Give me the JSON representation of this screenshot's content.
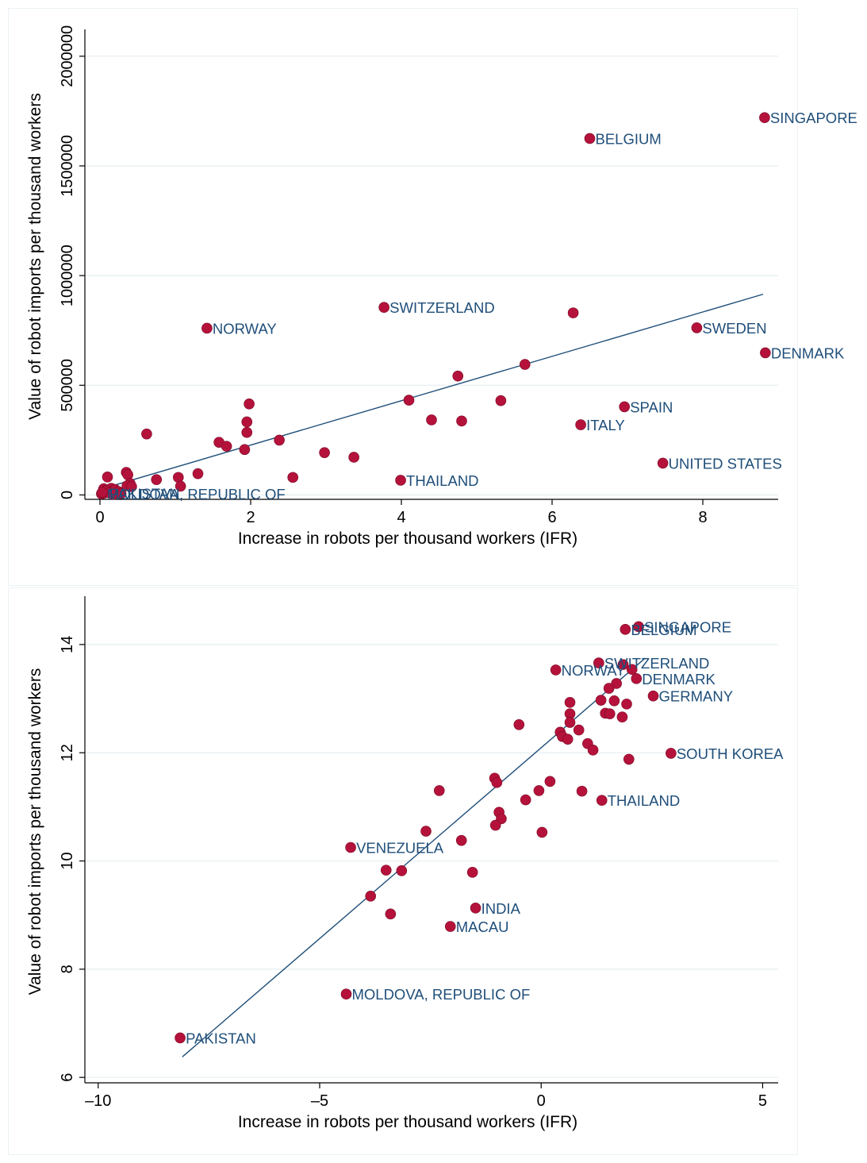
{
  "chart_data": [
    {
      "type": "scatter",
      "title": "",
      "xlabel": "Increase in robots per thousand workers (IFR)",
      "ylabel": "Value of robot imports per thousand workers",
      "xlim": [
        -0.2,
        9.0
      ],
      "ylim": [
        -20000,
        2050000
      ],
      "xticks": [
        0,
        2,
        4,
        6,
        8
      ],
      "yticks": [
        0,
        500000,
        1000000,
        1500000,
        2000000
      ],
      "grid": true,
      "marker_color": "#b5123b",
      "line_color": "#1f4e79",
      "label_color": "#1f4e79",
      "fit_line": {
        "x": [
          0.0,
          8.8
        ],
        "y": [
          25000,
          915000
        ]
      },
      "points": [
        {
          "x": 8.82,
          "y": 1720000,
          "label": "SINGAPORE"
        },
        {
          "x": 6.5,
          "y": 1625000,
          "label": "BELGIUM"
        },
        {
          "x": 3.77,
          "y": 855000,
          "label": "SWITZERLAND"
        },
        {
          "x": 1.42,
          "y": 760000,
          "label": "NORWAY"
        },
        {
          "x": 7.92,
          "y": 762000,
          "label": "SWEDEN"
        },
        {
          "x": 8.83,
          "y": 648000,
          "label": "DENMARK"
        },
        {
          "x": 6.96,
          "y": 402000,
          "label": "SPAIN"
        },
        {
          "x": 6.38,
          "y": 320000,
          "label": "ITALY"
        },
        {
          "x": 7.47,
          "y": 145000,
          "label": "UNITED STATES"
        },
        {
          "x": 3.99,
          "y": 67000,
          "label": "THAILAND"
        },
        {
          "x": 0.02,
          "y": 5000,
          "label": "MOLDOVA, REPUBLIC OF"
        },
        {
          "x": 0.05,
          "y": 8000,
          "label": "PAKISTAN"
        },
        {
          "x": 6.28,
          "y": 830000,
          "label": ""
        },
        {
          "x": 5.64,
          "y": 595000,
          "label": ""
        },
        {
          "x": 4.75,
          "y": 542000,
          "label": ""
        },
        {
          "x": 4.1,
          "y": 432000,
          "label": ""
        },
        {
          "x": 5.32,
          "y": 430000,
          "label": ""
        },
        {
          "x": 4.4,
          "y": 342000,
          "label": ""
        },
        {
          "x": 4.8,
          "y": 337000,
          "label": ""
        },
        {
          "x": 1.98,
          "y": 415000,
          "label": ""
        },
        {
          "x": 1.95,
          "y": 333000,
          "label": ""
        },
        {
          "x": 1.95,
          "y": 285000,
          "label": ""
        },
        {
          "x": 2.38,
          "y": 250000,
          "label": ""
        },
        {
          "x": 1.58,
          "y": 240000,
          "label": ""
        },
        {
          "x": 1.68,
          "y": 222000,
          "label": ""
        },
        {
          "x": 1.92,
          "y": 207000,
          "label": ""
        },
        {
          "x": 0.62,
          "y": 278000,
          "label": ""
        },
        {
          "x": 2.98,
          "y": 193000,
          "label": ""
        },
        {
          "x": 3.37,
          "y": 172000,
          "label": ""
        },
        {
          "x": 1.3,
          "y": 97000,
          "label": ""
        },
        {
          "x": 2.56,
          "y": 80000,
          "label": ""
        },
        {
          "x": 1.04,
          "y": 80000,
          "label": ""
        },
        {
          "x": 0.75,
          "y": 70000,
          "label": ""
        },
        {
          "x": 1.07,
          "y": 40000,
          "label": ""
        },
        {
          "x": 0.35,
          "y": 103000,
          "label": ""
        },
        {
          "x": 0.37,
          "y": 92000,
          "label": ""
        },
        {
          "x": 0.1,
          "y": 82000,
          "label": ""
        },
        {
          "x": 0.4,
          "y": 52000,
          "label": ""
        },
        {
          "x": 0.36,
          "y": 42000,
          "label": ""
        },
        {
          "x": 0.42,
          "y": 38000,
          "label": ""
        },
        {
          "x": 0.15,
          "y": 30000,
          "label": ""
        },
        {
          "x": 0.05,
          "y": 28000,
          "label": ""
        },
        {
          "x": 0.2,
          "y": 25000,
          "label": ""
        },
        {
          "x": 0.08,
          "y": 20000,
          "label": ""
        },
        {
          "x": 0.25,
          "y": 15000,
          "label": ""
        },
        {
          "x": 0.12,
          "y": 10000,
          "label": ""
        },
        {
          "x": 0.03,
          "y": 12000,
          "label": ""
        },
        {
          "x": 0.18,
          "y": 3000,
          "label": ""
        },
        {
          "x": 0.28,
          "y": 6000,
          "label": ""
        }
      ]
    },
    {
      "type": "scatter",
      "title": "",
      "xlabel": "Increase in robots per thousand workers (IFR)",
      "ylabel": "Value of robot imports per thousand workers",
      "xlim": [
        -10.3,
        5.35
      ],
      "ylim": [
        5.9,
        14.6
      ],
      "xticks": [
        -10,
        -5,
        0,
        5
      ],
      "xtick_labels": [
        "–10",
        "–5",
        "0",
        "5"
      ],
      "yticks": [
        6,
        8,
        10,
        12,
        14
      ],
      "grid": true,
      "marker_color": "#b5123b",
      "line_color": "#1f4e79",
      "label_color": "#1f4e79",
      "fit_line": {
        "x": [
          -8.1,
          2.35
        ],
        "y": [
          6.38,
          13.75
        ]
      },
      "points": [
        {
          "x": 2.2,
          "y": 14.33,
          "label": "SINGAPORE"
        },
        {
          "x": 1.9,
          "y": 14.28,
          "label": "BELGIUM"
        },
        {
          "x": 1.3,
          "y": 13.66,
          "label": "SWITZERLAND"
        },
        {
          "x": 0.33,
          "y": 13.53,
          "label": "NORWAY"
        },
        {
          "x": 2.15,
          "y": 13.37,
          "label": "DENMARK"
        },
        {
          "x": 2.53,
          "y": 13.05,
          "label": "GERMANY"
        },
        {
          "x": 2.93,
          "y": 11.99,
          "label": "SOUTH KOREA"
        },
        {
          "x": 1.37,
          "y": 11.12,
          "label": "THAILAND"
        },
        {
          "x": -4.3,
          "y": 10.25,
          "label": "VENEZUELA"
        },
        {
          "x": -1.48,
          "y": 9.13,
          "label": "INDIA"
        },
        {
          "x": -2.05,
          "y": 8.79,
          "label": "MACAU"
        },
        {
          "x": -4.4,
          "y": 7.54,
          "label": "MOLDOVA, REPUBLIC OF"
        },
        {
          "x": -8.15,
          "y": 6.73,
          "label": "PAKISTAN"
        },
        {
          "x": 1.85,
          "y": 13.63,
          "label": ""
        },
        {
          "x": 2.05,
          "y": 13.54,
          "label": ""
        },
        {
          "x": 1.7,
          "y": 13.28,
          "label": ""
        },
        {
          "x": 1.53,
          "y": 13.19,
          "label": ""
        },
        {
          "x": 1.35,
          "y": 12.97,
          "label": ""
        },
        {
          "x": 1.65,
          "y": 12.96,
          "label": ""
        },
        {
          "x": 0.65,
          "y": 12.93,
          "label": ""
        },
        {
          "x": 1.93,
          "y": 12.9,
          "label": ""
        },
        {
          "x": 0.65,
          "y": 12.72,
          "label": ""
        },
        {
          "x": 1.45,
          "y": 12.73,
          "label": ""
        },
        {
          "x": 1.55,
          "y": 12.72,
          "label": ""
        },
        {
          "x": 1.83,
          "y": 12.66,
          "label": ""
        },
        {
          "x": 0.65,
          "y": 12.56,
          "label": ""
        },
        {
          "x": -0.5,
          "y": 12.52,
          "label": ""
        },
        {
          "x": 0.85,
          "y": 12.42,
          "label": ""
        },
        {
          "x": 0.43,
          "y": 12.38,
          "label": ""
        },
        {
          "x": 0.48,
          "y": 12.3,
          "label": ""
        },
        {
          "x": 0.6,
          "y": 12.25,
          "label": ""
        },
        {
          "x": 1.05,
          "y": 12.17,
          "label": ""
        },
        {
          "x": 1.17,
          "y": 12.05,
          "label": ""
        },
        {
          "x": 1.98,
          "y": 11.88,
          "label": ""
        },
        {
          "x": -1.05,
          "y": 11.53,
          "label": ""
        },
        {
          "x": -1.0,
          "y": 11.45,
          "label": ""
        },
        {
          "x": 0.2,
          "y": 11.47,
          "label": ""
        },
        {
          "x": -2.3,
          "y": 11.3,
          "label": ""
        },
        {
          "x": -0.05,
          "y": 11.3,
          "label": ""
        },
        {
          "x": 0.92,
          "y": 11.29,
          "label": ""
        },
        {
          "x": -0.35,
          "y": 11.13,
          "label": ""
        },
        {
          "x": -0.95,
          "y": 10.9,
          "label": ""
        },
        {
          "x": -0.9,
          "y": 10.78,
          "label": ""
        },
        {
          "x": -1.03,
          "y": 10.66,
          "label": ""
        },
        {
          "x": -2.6,
          "y": 10.55,
          "label": ""
        },
        {
          "x": 0.02,
          "y": 10.53,
          "label": ""
        },
        {
          "x": -1.8,
          "y": 10.38,
          "label": ""
        },
        {
          "x": -3.5,
          "y": 9.83,
          "label": ""
        },
        {
          "x": -3.15,
          "y": 9.82,
          "label": ""
        },
        {
          "x": -1.55,
          "y": 9.79,
          "label": ""
        },
        {
          "x": -3.85,
          "y": 9.35,
          "label": ""
        },
        {
          "x": -3.4,
          "y": 9.02,
          "label": ""
        }
      ]
    }
  ]
}
